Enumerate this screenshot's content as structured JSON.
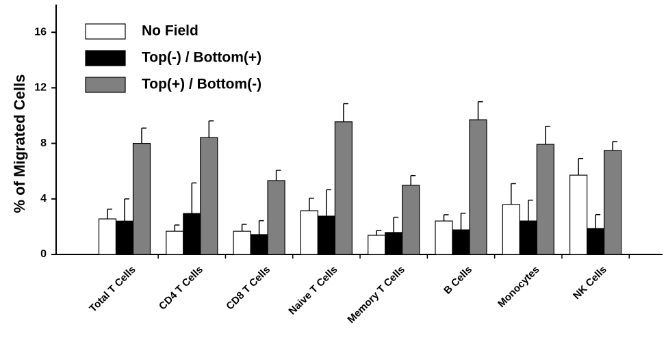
{
  "chart_data": {
    "type": "bar",
    "y_label": "% of Migrated Cells",
    "categories": [
      "Total T Cells",
      "CD4 T Cells",
      "CD8 T Cells",
      "Naive T Cells",
      "Memory T Cells",
      "B Cells",
      "Monocytes",
      "NK Cells"
    ],
    "series": [
      {
        "name": "No Field",
        "color": "#ffffff",
        "values": [
          2.56,
          1.67,
          1.67,
          3.15,
          1.38,
          2.41,
          3.6,
          5.71
        ],
        "errors": [
          0.7,
          0.45,
          0.5,
          0.9,
          0.35,
          0.45,
          1.5,
          1.2
        ]
      },
      {
        "name": "Top(-) / Bottom(+)",
        "color": "#000000",
        "values": [
          2.4,
          2.95,
          1.43,
          2.76,
          1.58,
          1.77,
          2.41,
          1.87
        ],
        "errors": [
          1.6,
          2.2,
          1.0,
          1.9,
          1.1,
          1.2,
          1.5,
          1.0
        ]
      },
      {
        "name": "Top(+) / Bottom(-)",
        "color": "#808080",
        "values": [
          8.0,
          8.42,
          5.32,
          9.56,
          4.98,
          9.7,
          7.93,
          7.49
        ],
        "errors": [
          1.1,
          1.2,
          0.74,
          1.3,
          0.7,
          1.3,
          1.3,
          0.64
        ]
      }
    ],
    "ylim": [
      0,
      18
    ],
    "yticks": [
      0,
      4,
      8,
      12,
      16
    ],
    "legend": "upper-left"
  }
}
